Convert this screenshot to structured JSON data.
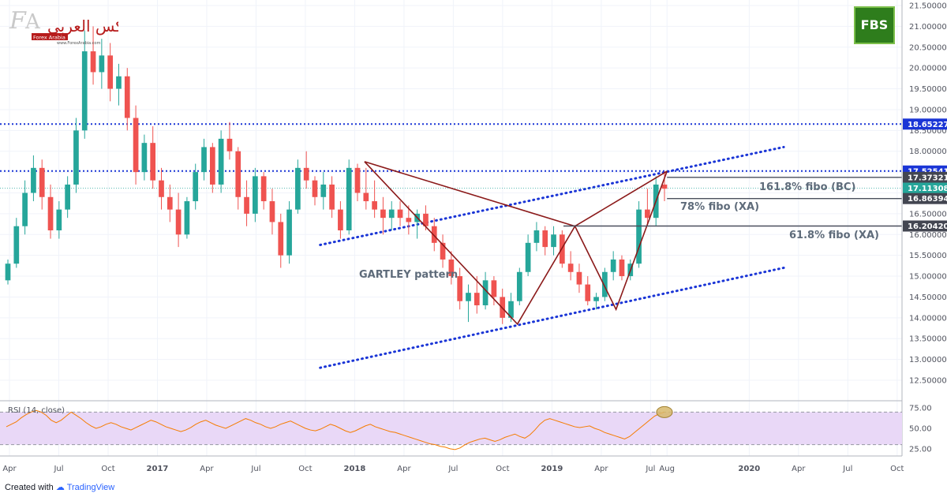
{
  "logos": {
    "broker": "FBS",
    "site_arabic": "الفوركس العربي",
    "site_badge": "Forex Arabia",
    "site_url": "www.ForexArabia.com"
  },
  "footer": {
    "created": "Created with",
    "brand": "TradingView"
  },
  "colors": {
    "up": "#26a69a",
    "down": "#ef5350",
    "pattern": "#8b1a1a",
    "dotted": "#1a35d6",
    "fibo": "#4a4f5c",
    "rsi_line": "#f57c00",
    "rsi_band": "#e9d8f7",
    "price_tag_blue": "#1a35d6",
    "price_tag_dark": "#434651",
    "price_tag_teal": "#26a69a",
    "rsi_highlight": "#d7b86b"
  },
  "annotations": {
    "gartley": "GARTLEY pattern",
    "fibo_1618": "161.8% fibo (BC)",
    "fibo_78": "78% fibo (XA)",
    "fibo_618": "61.8% fibo (XA)"
  },
  "rsi": {
    "label": "RSI (14, close)"
  },
  "chart_data": [
    {
      "type": "candlestick",
      "title": "",
      "xlabel": "",
      "ylabel": "",
      "ylim": [
        12.2,
        21.5
      ],
      "x_ticks": [
        {
          "label": "Apr",
          "t": 0
        },
        {
          "label": "Jul",
          "t": 3
        },
        {
          "label": "Oct",
          "t": 6
        },
        {
          "label": "2017",
          "t": 9
        },
        {
          "label": "Apr",
          "t": 12
        },
        {
          "label": "Jul",
          "t": 15
        },
        {
          "label": "Oct",
          "t": 18
        },
        {
          "label": "2018",
          "t": 21
        },
        {
          "label": "Apr",
          "t": 24
        },
        {
          "label": "Jul",
          "t": 27
        },
        {
          "label": "Oct",
          "t": 30
        },
        {
          "label": "2019",
          "t": 33
        },
        {
          "label": "Apr",
          "t": 36
        },
        {
          "label": "Jul",
          "t": 39
        },
        {
          "label": "Aug",
          "t": 40
        },
        {
          "label": "2020",
          "t": 45
        },
        {
          "label": "Apr",
          "t": 48
        },
        {
          "label": "Jul",
          "t": 51
        },
        {
          "label": "Oct",
          "t": 54
        }
      ],
      "y_ticks": [
        "21.50000",
        "21.00000",
        "20.50000",
        "20.00000",
        "19.50000",
        "19.00000",
        "18.50000",
        "18.00000",
        "17.50000",
        "17.00000",
        "16.50000",
        "16.00000",
        "15.50000",
        "15.00000",
        "14.50000",
        "14.00000",
        "13.50000",
        "13.00000",
        "12.50000"
      ],
      "price_tags": [
        {
          "value": "18.65227",
          "style": "blue"
        },
        {
          "value": "17.52541",
          "style": "blue"
        },
        {
          "value": "17.37321",
          "style": "dark"
        },
        {
          "value": "17.11308",
          "style": "teal"
        },
        {
          "value": "16.86394",
          "style": "dark"
        },
        {
          "value": "16.20420",
          "style": "dark"
        }
      ],
      "horizontal_lines": [
        {
          "value": 18.652,
          "style": "dotted"
        },
        {
          "value": 17.525,
          "style": "dotted"
        }
      ],
      "fibo_levels": [
        {
          "value": 17.373,
          "label_key": "fibo_1618",
          "t_start": 40.0
        },
        {
          "value": 16.864,
          "label_key": "fibo_78",
          "t_start": 40.0
        },
        {
          "value": 16.204,
          "label_key": "fibo_618",
          "t_start": 33.7
        }
      ],
      "channel_lines": [
        {
          "points": [
            [
              18.9,
              15.75
            ],
            [
              47.1,
              18.1
            ]
          ]
        },
        {
          "points": [
            [
              18.9,
              12.8
            ],
            [
              47.1,
              15.2
            ]
          ]
        }
      ],
      "gartley_points": [
        [
          21.6,
          17.75
        ],
        [
          30.9,
          13.85
        ],
        [
          34.4,
          16.2
        ],
        [
          36.9,
          14.2
        ],
        [
          40.0,
          17.52
        ]
      ],
      "gartley_closing": [
        [
          21.6,
          17.75
        ],
        [
          34.4,
          16.2
        ]
      ],
      "ohlc": [
        [
          14.9,
          15.4,
          14.8,
          15.3
        ],
        [
          15.3,
          16.4,
          15.2,
          16.2
        ],
        [
          16.2,
          17.3,
          16.0,
          17.0
        ],
        [
          17.0,
          17.9,
          16.8,
          17.6
        ],
        [
          17.6,
          17.8,
          16.6,
          16.9
        ],
        [
          16.9,
          17.2,
          15.9,
          16.1
        ],
        [
          16.1,
          16.8,
          15.9,
          16.6
        ],
        [
          16.6,
          17.4,
          16.4,
          17.2
        ],
        [
          17.2,
          18.8,
          17.0,
          18.5
        ],
        [
          18.5,
          20.9,
          18.3,
          20.4
        ],
        [
          20.4,
          21.0,
          19.6,
          19.9
        ],
        [
          19.9,
          20.7,
          19.5,
          20.3
        ],
        [
          20.3,
          20.6,
          19.2,
          19.5
        ],
        [
          19.5,
          20.1,
          19.1,
          19.8
        ],
        [
          19.8,
          20.0,
          18.5,
          18.8
        ],
        [
          18.8,
          19.1,
          17.2,
          17.5
        ],
        [
          17.5,
          18.4,
          17.3,
          18.2
        ],
        [
          18.2,
          18.6,
          17.1,
          17.3
        ],
        [
          17.3,
          17.6,
          16.6,
          16.9
        ],
        [
          16.9,
          17.2,
          16.3,
          16.6
        ],
        [
          16.6,
          17.0,
          15.7,
          16.0
        ],
        [
          16.0,
          16.9,
          15.9,
          16.8
        ],
        [
          16.8,
          17.7,
          16.6,
          17.5
        ],
        [
          17.5,
          18.3,
          17.3,
          18.1
        ],
        [
          18.1,
          18.2,
          17.0,
          17.2
        ],
        [
          17.2,
          18.5,
          17.0,
          18.3
        ],
        [
          18.3,
          18.7,
          17.8,
          18.0
        ],
        [
          18.0,
          18.1,
          16.6,
          16.9
        ],
        [
          16.9,
          17.3,
          16.2,
          16.5
        ],
        [
          16.5,
          17.6,
          16.3,
          17.4
        ],
        [
          17.4,
          17.5,
          16.6,
          16.8
        ],
        [
          16.8,
          17.1,
          16.0,
          16.3
        ],
        [
          16.3,
          16.5,
          15.2,
          15.5
        ],
        [
          15.5,
          16.8,
          15.3,
          16.6
        ],
        [
          16.6,
          17.8,
          16.5,
          17.6
        ],
        [
          17.6,
          18.0,
          17.1,
          17.3
        ],
        [
          17.3,
          17.4,
          16.7,
          16.9
        ],
        [
          16.9,
          17.5,
          16.6,
          17.2
        ],
        [
          17.2,
          17.4,
          16.4,
          16.6
        ],
        [
          16.6,
          16.8,
          15.9,
          16.1
        ],
        [
          16.1,
          17.8,
          16.0,
          17.6
        ],
        [
          17.6,
          17.7,
          16.8,
          17.0
        ],
        [
          17.0,
          17.6,
          16.6,
          16.8
        ],
        [
          16.8,
          17.3,
          16.4,
          16.6
        ],
        [
          16.6,
          16.9,
          16.0,
          16.4
        ],
        [
          16.4,
          16.8,
          16.1,
          16.6
        ],
        [
          16.6,
          16.8,
          16.2,
          16.4
        ],
        [
          16.4,
          16.7,
          16.0,
          16.3
        ],
        [
          16.3,
          16.6,
          15.9,
          16.5
        ],
        [
          16.5,
          16.7,
          16.1,
          16.2
        ],
        [
          16.2,
          16.4,
          15.6,
          15.8
        ],
        [
          15.8,
          16.0,
          15.2,
          15.4
        ],
        [
          15.4,
          15.6,
          14.8,
          15.0
        ],
        [
          15.0,
          15.2,
          14.2,
          14.4
        ],
        [
          14.4,
          14.8,
          13.9,
          14.6
        ],
        [
          14.6,
          15.0,
          14.1,
          14.3
        ],
        [
          14.3,
          15.1,
          14.2,
          14.9
        ],
        [
          14.9,
          15.0,
          14.3,
          14.5
        ],
        [
          14.5,
          14.7,
          13.85,
          14.0
        ],
        [
          14.0,
          14.6,
          13.9,
          14.4
        ],
        [
          14.4,
          15.2,
          14.3,
          15.1
        ],
        [
          15.1,
          16.0,
          15.0,
          15.8
        ],
        [
          15.8,
          16.3,
          15.6,
          16.1
        ],
        [
          16.1,
          16.2,
          15.5,
          15.7
        ],
        [
          15.7,
          16.2,
          15.5,
          16.0
        ],
        [
          16.0,
          16.1,
          15.2,
          15.3
        ],
        [
          15.3,
          15.6,
          14.9,
          15.1
        ],
        [
          15.1,
          15.3,
          14.6,
          14.8
        ],
        [
          14.8,
          15.0,
          14.3,
          14.4
        ],
        [
          14.4,
          14.6,
          14.2,
          14.5
        ],
        [
          14.5,
          15.2,
          14.4,
          15.1
        ],
        [
          15.1,
          15.6,
          14.9,
          15.4
        ],
        [
          15.4,
          15.5,
          14.9,
          15.0
        ],
        [
          15.0,
          15.4,
          14.9,
          15.3
        ],
        [
          15.3,
          16.8,
          15.2,
          16.6
        ],
        [
          16.6,
          17.1,
          16.2,
          16.4
        ],
        [
          16.4,
          17.4,
          16.2,
          17.2
        ],
        [
          17.2,
          17.52,
          16.8,
          17.1
        ]
      ]
    },
    {
      "type": "line",
      "title": "",
      "series_label_key": "rsi.label",
      "ylim": [
        20,
        80
      ],
      "y_ticks": [
        "75.00",
        "50.00",
        "25.00"
      ],
      "band": [
        30,
        70
      ],
      "values": [
        52,
        55,
        58,
        63,
        67,
        70,
        72,
        70,
        66,
        60,
        57,
        60,
        65,
        70,
        66,
        62,
        57,
        53,
        50,
        52,
        55,
        57,
        55,
        52,
        50,
        48,
        51,
        54,
        57,
        60,
        58,
        55,
        52,
        50,
        48,
        46,
        48,
        51,
        55,
        58,
        60,
        57,
        54,
        52,
        50,
        53,
        56,
        59,
        62,
        60,
        57,
        55,
        52,
        50,
        52,
        55,
        57,
        59,
        56,
        53,
        50,
        48,
        47,
        49,
        52,
        55,
        53,
        50,
        47,
        45,
        47,
        50,
        53,
        55,
        52,
        50,
        48,
        46,
        45,
        43,
        41,
        39,
        37,
        35,
        33,
        31,
        30,
        28,
        27,
        25,
        24,
        26,
        30,
        33,
        35,
        37,
        38,
        36,
        34,
        36,
        39,
        41,
        43,
        40,
        38,
        42,
        48,
        55,
        60,
        62,
        60,
        58,
        56,
        54,
        52,
        51,
        52,
        53,
        50,
        48,
        45,
        43,
        41,
        39,
        37,
        40,
        45,
        50,
        55,
        60,
        65,
        68,
        70
      ]
    }
  ]
}
